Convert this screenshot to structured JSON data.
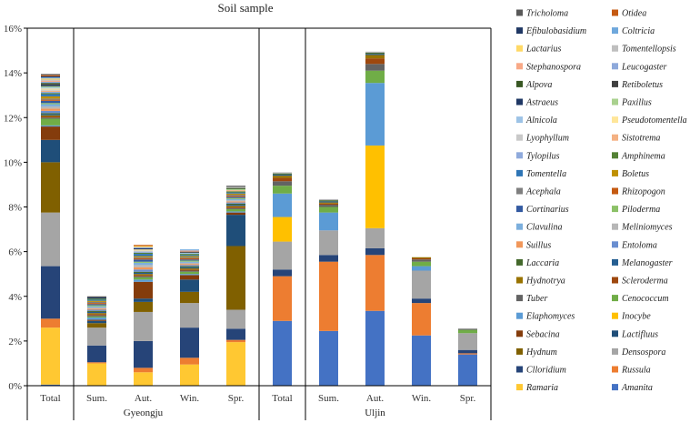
{
  "chart_data": {
    "type": "bar",
    "stacked": true,
    "title": "Soil sample",
    "ylim": [
      0,
      16
    ],
    "yticks": [
      "0%",
      "2%",
      "4%",
      "6%",
      "8%",
      "10%",
      "12%",
      "14%",
      "16%"
    ],
    "categories": [
      "Total",
      "Sum.",
      "Aut.",
      "Win.",
      "Spr.",
      "Total",
      "Sum.",
      "Aut.",
      "Win.",
      "Spr."
    ],
    "groups": [
      {
        "label": "Gyeongju",
        "categories": [
          0,
          1,
          2,
          3,
          4
        ]
      },
      {
        "label": "Uljin",
        "categories": [
          5,
          6,
          7,
          8,
          9
        ]
      }
    ],
    "legend_position": "right",
    "series": [
      {
        "name": "Amanita",
        "color": "#4472C4",
        "values": [
          0.05,
          0.0,
          0.0,
          0.0,
          0.0,
          2.9,
          2.45,
          3.35,
          2.25,
          1.4
        ]
      },
      {
        "name": "Ramaria",
        "color": "#FFC832",
        "values": [
          2.55,
          1.0,
          0.6,
          0.95,
          1.95,
          0.0,
          0.0,
          0.0,
          0.0,
          0.0
        ]
      },
      {
        "name": "Russula",
        "color": "#ED7D31",
        "values": [
          0.4,
          0.05,
          0.2,
          0.3,
          0.1,
          2.0,
          3.1,
          2.5,
          1.45,
          0.05
        ]
      },
      {
        "name": "Clloridium",
        "color": "#264478",
        "values": [
          2.35,
          0.75,
          1.2,
          1.35,
          0.5,
          0.3,
          0.3,
          0.3,
          0.2,
          0.15
        ]
      },
      {
        "name": "Densospora",
        "color": "#A5A5A5",
        "values": [
          2.4,
          0.8,
          1.3,
          1.1,
          0.85,
          1.25,
          1.1,
          0.9,
          1.25,
          0.75
        ]
      },
      {
        "name": "Hydnum",
        "color": "#806000",
        "values": [
          2.25,
          0.2,
          0.45,
          0.5,
          2.85,
          0.0,
          0.0,
          0.0,
          0.0,
          0.0
        ]
      },
      {
        "name": "Lactifluus",
        "color": "#1F4E79",
        "values": [
          1.0,
          0.1,
          0.15,
          0.55,
          1.4,
          0.0,
          0.0,
          0.0,
          0.0,
          0.0
        ]
      },
      {
        "name": "Sebacina",
        "color": "#843C0C",
        "values": [
          0.6,
          0.05,
          0.75,
          0.2,
          0.1,
          0.0,
          0.0,
          0.0,
          0.0,
          0.0
        ]
      },
      {
        "name": "Inocybe",
        "color": "#FFC000",
        "values": [
          0.0,
          0.0,
          0.0,
          0.0,
          0.0,
          1.1,
          0.0,
          3.7,
          0.0,
          0.0
        ]
      },
      {
        "name": "Elaphomyces",
        "color": "#5B9BD5",
        "values": [
          0.05,
          0.1,
          0.1,
          0.05,
          0.05,
          1.05,
          0.8,
          2.8,
          0.2,
          0.0
        ]
      },
      {
        "name": "Cenococcum",
        "color": "#70AD47",
        "values": [
          0.3,
          0.05,
          0.1,
          0.1,
          0.1,
          0.35,
          0.25,
          0.55,
          0.2,
          0.15
        ]
      },
      {
        "name": "Tuber",
        "color": "#636363",
        "values": [
          0.05,
          0.05,
          0.05,
          0.05,
          0.05,
          0.2,
          0.1,
          0.3,
          0.1,
          0.05
        ]
      },
      {
        "name": "Scleroderma",
        "color": "#9E480E",
        "values": [
          0.05,
          0.05,
          0.05,
          0.05,
          0.05,
          0.15,
          0.05,
          0.25,
          0.05,
          0.0
        ]
      },
      {
        "name": "Hydnotrya",
        "color": "#997300",
        "values": [
          0.05,
          0.05,
          0.05,
          0.05,
          0.05,
          0.1,
          0.05,
          0.15,
          0.05,
          0.0
        ]
      },
      {
        "name": "Melanogaster",
        "color": "#255E91",
        "values": [
          0.05,
          0.05,
          0.05,
          0.05,
          0.05,
          0.05,
          0.05,
          0.05,
          0.0,
          0.0
        ]
      },
      {
        "name": "Laccaria",
        "color": "#43682B",
        "values": [
          0.05,
          0.05,
          0.05,
          0.05,
          0.05,
          0.05,
          0.05,
          0.05,
          0.0,
          0.0
        ]
      },
      {
        "name": "Entoloma",
        "color": "#698ED0",
        "values": [
          0.1,
          0.05,
          0.1,
          0.05,
          0.05,
          0.0,
          0.0,
          0.0,
          0.0,
          0.0
        ]
      },
      {
        "name": "Suillus",
        "color": "#F1975A",
        "values": [
          0.1,
          0.05,
          0.1,
          0.05,
          0.05,
          0.0,
          0.0,
          0.0,
          0.0,
          0.0
        ]
      },
      {
        "name": "Meliniomyces",
        "color": "#B7B7B7",
        "values": [
          0.1,
          0.05,
          0.1,
          0.05,
          0.05,
          0.05,
          0.05,
          0.05,
          0.0,
          0.0
        ]
      },
      {
        "name": "Clavulina",
        "color": "#7CAFDD",
        "values": [
          0.1,
          0.05,
          0.1,
          0.05,
          0.05,
          0.0,
          0.0,
          0.0,
          0.0,
          0.0
        ]
      },
      {
        "name": "Piloderma",
        "color": "#8CC168",
        "values": [
          0.05,
          0.05,
          0.05,
          0.05,
          0.05,
          0.0,
          0.0,
          0.0,
          0.0,
          0.0
        ]
      },
      {
        "name": "Cortinarius",
        "color": "#335AA1",
        "values": [
          0.1,
          0.05,
          0.1,
          0.05,
          0.05,
          0.0,
          0.0,
          0.0,
          0.0,
          0.0
        ]
      },
      {
        "name": "Rhizopogon",
        "color": "#C55A11",
        "values": [
          0.05,
          0.05,
          0.05,
          0.05,
          0.05,
          0.0,
          0.0,
          0.0,
          0.0,
          0.0
        ]
      },
      {
        "name": "Acephala",
        "color": "#7F7F7F",
        "values": [
          0.05,
          0.05,
          0.05,
          0.05,
          0.05,
          0.0,
          0.0,
          0.0,
          0.0,
          0.0
        ]
      },
      {
        "name": "Boletus",
        "color": "#BF9000",
        "values": [
          0.1,
          0.05,
          0.05,
          0.05,
          0.05,
          0.0,
          0.0,
          0.0,
          0.0,
          0.0
        ]
      },
      {
        "name": "Tomentella",
        "color": "#2E75B6",
        "values": [
          0.1,
          0.05,
          0.1,
          0.05,
          0.05,
          0.0,
          0.0,
          0.0,
          0.0,
          0.0
        ]
      },
      {
        "name": "Amphinema",
        "color": "#548235",
        "values": [
          0.05,
          0.05,
          0.05,
          0.05,
          0.05,
          0.0,
          0.0,
          0.0,
          0.0,
          0.0
        ]
      },
      {
        "name": "Tylopilus",
        "color": "#8FAADC",
        "values": [
          0.05,
          0.0,
          0.05,
          0.0,
          0.0,
          0.0,
          0.0,
          0.0,
          0.0,
          0.0
        ]
      },
      {
        "name": "Sistotrema",
        "color": "#F4B183",
        "values": [
          0.05,
          0.0,
          0.0,
          0.0,
          0.05,
          0.0,
          0.0,
          0.0,
          0.0,
          0.0
        ]
      },
      {
        "name": "Lyophyllum",
        "color": "#C9C9C9",
        "values": [
          0.05,
          0.0,
          0.05,
          0.0,
          0.0,
          0.0,
          0.0,
          0.0,
          0.0,
          0.0
        ]
      },
      {
        "name": "Pseudotomentella",
        "color": "#FFE699",
        "values": [
          0.05,
          0.0,
          0.05,
          0.0,
          0.0,
          0.0,
          0.0,
          0.0,
          0.0,
          0.0
        ]
      },
      {
        "name": "Alnicola",
        "color": "#9DC3E6",
        "values": [
          0.05,
          0.0,
          0.0,
          0.05,
          0.0,
          0.0,
          0.0,
          0.0,
          0.0,
          0.0
        ]
      },
      {
        "name": "Paxillus",
        "color": "#A9D18E",
        "values": [
          0.05,
          0.0,
          0.0,
          0.0,
          0.05,
          0.0,
          0.0,
          0.0,
          0.0,
          0.0
        ]
      },
      {
        "name": "Astraeus",
        "color": "#1F3864",
        "values": [
          0.05,
          0.0,
          0.05,
          0.0,
          0.0,
          0.0,
          0.0,
          0.0,
          0.0,
          0.0
        ]
      },
      {
        "name": "Retiboletus",
        "color": "#404040",
        "values": [
          0.05,
          0.0,
          0.0,
          0.05,
          0.0,
          0.0,
          0.0,
          0.0,
          0.0,
          0.0
        ]
      },
      {
        "name": "Alpova",
        "color": "#385723",
        "values": [
          0.05,
          0.0,
          0.0,
          0.0,
          0.05,
          0.0,
          0.0,
          0.0,
          0.0,
          0.0
        ]
      },
      {
        "name": "Leucogaster",
        "color": "#8EA9DB",
        "values": [
          0.05,
          0.0,
          0.05,
          0.0,
          0.0,
          0.0,
          0.0,
          0.0,
          0.0,
          0.0
        ]
      },
      {
        "name": "Stephanospora",
        "color": "#F8A987",
        "values": [
          0.05,
          0.0,
          0.0,
          0.05,
          0.0,
          0.0,
          0.0,
          0.0,
          0.0,
          0.0
        ]
      },
      {
        "name": "Tomentellopsis",
        "color": "#BFBFBF",
        "values": [
          0.05,
          0.0,
          0.0,
          0.0,
          0.05,
          0.0,
          0.0,
          0.0,
          0.0,
          0.0
        ]
      },
      {
        "name": "Lactarius",
        "color": "#FFD966",
        "values": [
          0.05,
          0.0,
          0.05,
          0.0,
          0.0,
          0.0,
          0.0,
          0.0,
          0.0,
          0.0
        ]
      },
      {
        "name": "Coltricia",
        "color": "#6FA8DC",
        "values": [
          0.05,
          0.0,
          0.0,
          0.05,
          0.0,
          0.0,
          0.0,
          0.0,
          0.0,
          0.0
        ]
      },
      {
        "name": "Efibulobasidium",
        "color": "#203864",
        "values": [
          0.05,
          0.05,
          0.0,
          0.0,
          0.0,
          0.0,
          0.0,
          0.0,
          0.0,
          0.0
        ]
      },
      {
        "name": "Otidea",
        "color": "#C55A11",
        "values": [
          0.05,
          0.0,
          0.05,
          0.0,
          0.0,
          0.0,
          0.0,
          0.0,
          0.0,
          0.0
        ]
      },
      {
        "name": "Tricholoma",
        "color": "#595959",
        "values": [
          0.05,
          0.05,
          0.0,
          0.0,
          0.05,
          0.0,
          0.0,
          0.0,
          0.0,
          0.0
        ]
      }
    ],
    "legend_order": [
      "Tricholoma",
      "Otidea",
      "Efibulobasidium",
      "Coltricia",
      "Lactarius",
      "Tomentellopsis",
      "Stephanospora",
      "Leucogaster",
      "Alpova",
      "Retiboletus",
      "Astraeus",
      "Paxillus",
      "Alnicola",
      "Pseudotomentella",
      "Lyophyllum",
      "Sistotrema",
      "Tylopilus",
      "Amphinema",
      "Tomentella",
      "Boletus",
      "Acephala",
      "Rhizopogon",
      "Cortinarius",
      "Piloderma",
      "Clavulina",
      "Meliniomyces",
      "Suillus",
      "Entoloma",
      "Laccaria",
      "Melanogaster",
      "Hydnotrya",
      "Scleroderma",
      "Tuber",
      "Cenococcum",
      "Elaphomyces",
      "Inocybe",
      "Sebacina",
      "Lactifluus",
      "Hydnum",
      "Densospora",
      "Clloridium",
      "Russula",
      "Ramaria",
      "Amanita"
    ]
  }
}
